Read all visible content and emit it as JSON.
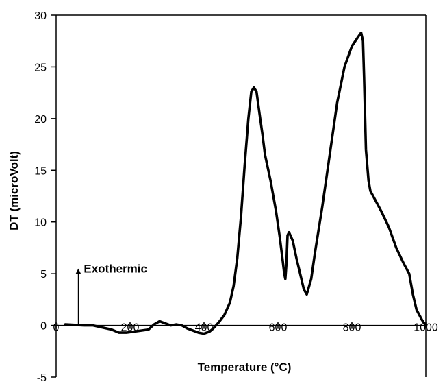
{
  "chart_data": {
    "type": "line",
    "title": "",
    "xlabel": "Temperature (°C)",
    "ylabel": "DT (microVolt)",
    "xlim": [
      0,
      1000
    ],
    "ylim": [
      -5,
      30
    ],
    "xticks": [
      0,
      200,
      400,
      600,
      800,
      1000
    ],
    "yticks": [
      -5,
      0,
      5,
      10,
      15,
      20,
      25,
      30
    ],
    "grid": false,
    "annotation": {
      "text": "Exothermic",
      "arrow_x": 60,
      "arrow_y_from": 0,
      "arrow_y_to": 5.5
    },
    "series": [
      {
        "x": [
          25,
          50,
          75,
          100,
          125,
          150,
          170,
          190,
          210,
          230,
          250,
          265,
          280,
          295,
          310,
          325,
          340,
          355,
          370,
          385,
          400,
          415,
          425,
          440,
          455,
          470,
          480,
          490,
          500,
          510,
          520,
          528,
          535,
          542,
          550,
          558,
          565,
          580,
          595,
          605,
          612,
          617,
          620,
          623,
          626,
          630,
          640,
          650,
          660,
          670,
          678,
          690,
          700,
          720,
          740,
          760,
          780,
          800,
          815,
          825,
          830,
          833,
          838,
          845,
          850,
          865,
          880,
          900,
          920,
          940,
          955,
          965,
          975,
          990,
          1000
        ],
        "y": [
          0.1,
          0.05,
          0.0,
          0.0,
          -0.2,
          -0.4,
          -0.7,
          -0.7,
          -0.6,
          -0.5,
          -0.4,
          0.1,
          0.4,
          0.2,
          0.0,
          0.1,
          0.0,
          -0.3,
          -0.5,
          -0.7,
          -0.8,
          -0.6,
          -0.3,
          0.3,
          1.0,
          2.2,
          3.8,
          6.5,
          10.5,
          15.5,
          20.0,
          22.6,
          23.0,
          22.6,
          20.5,
          18.5,
          16.5,
          14.0,
          11.0,
          8.5,
          6.5,
          5.0,
          4.5,
          6.0,
          8.7,
          9.0,
          8.2,
          6.5,
          5.0,
          3.5,
          3.0,
          4.5,
          7.0,
          11.5,
          16.5,
          21.5,
          25.0,
          27.0,
          27.8,
          28.3,
          27.5,
          24.0,
          17.0,
          14.0,
          13.0,
          12.0,
          11.0,
          9.5,
          7.5,
          6.0,
          5.0,
          3.0,
          1.5,
          0.5,
          0.0
        ]
      }
    ]
  }
}
